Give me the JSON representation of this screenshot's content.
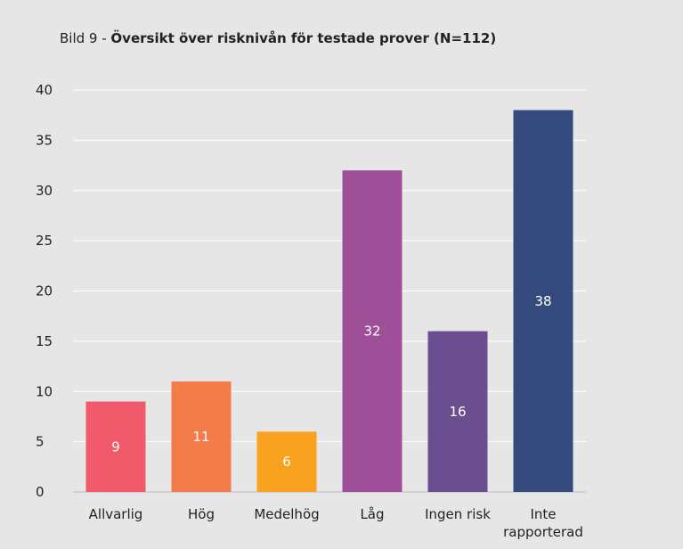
{
  "chart_data": {
    "type": "bar",
    "title_prefix": "Bild 9 - ",
    "title": "Översikt över risknivån för testade prover (N=112)",
    "xlabel": "",
    "ylabel": "",
    "ylim": [
      0,
      40
    ],
    "yticks": [
      "0",
      "5",
      "10",
      "15",
      "20",
      "25",
      "30",
      "35",
      "40"
    ],
    "grid": true,
    "legend": "none",
    "categories": [
      [
        "Allvarlig"
      ],
      [
        "Hög"
      ],
      [
        "Medelhög"
      ],
      [
        "Låg"
      ],
      [
        "Ingen risk"
      ],
      [
        "Inte",
        "rapporterad"
      ]
    ],
    "values": [
      9,
      11,
      6,
      32,
      16,
      38
    ],
    "data_labels": [
      "9",
      "11",
      "6",
      "32",
      "16",
      "38"
    ],
    "colors": [
      "#f05a6a",
      "#f47c4a",
      "#f8a21f",
      "#9e4f98",
      "#6a4e8f",
      "#354a7c"
    ]
  }
}
